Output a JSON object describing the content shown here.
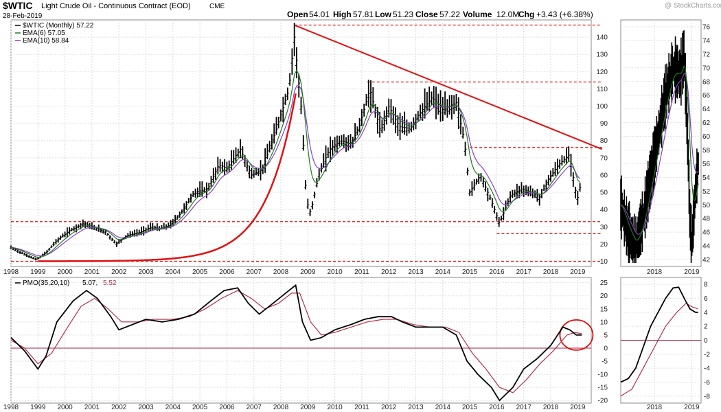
{
  "header": {
    "symbol": "$WTIC",
    "name": "Light Crude Oil - Continuous Contract (EOD)",
    "exchange": "CME",
    "date": "28-Feb-2019",
    "open_label": "Open",
    "open": "54.01",
    "high_label": "High",
    "high": "57.81",
    "low_label": "Low",
    "low": "51.23",
    "close_label": "Close",
    "close": "57.22",
    "volume_label": "Volume",
    "volume": "12.0M",
    "chg_label": "Chg",
    "chg": "+3.43 (+6.38%)",
    "watermark": "@ StockCharts.com"
  },
  "legend": {
    "price": "$WTIC (Monthly) 57.22",
    "ema6": "EMA(6) 57.05",
    "ema10": "EMA(10) 58.84",
    "pmo_label": "PMO(35,20,10)",
    "pmo_val": "5.07,",
    "pmo_sig": "5.52"
  },
  "colors": {
    "price": "#000000",
    "ema6": "#1f7a1f",
    "ema10": "#8a3ec8",
    "annotation": "#e01010",
    "pmo": "#000000",
    "pmo_signal": "#b0304a",
    "zero_line": "#a02040"
  },
  "chart_data": [
    {
      "type": "line",
      "panel": "price",
      "x_ticks": [
        "1998",
        "1999",
        "2000",
        "2001",
        "2002",
        "2003",
        "2004",
        "2005",
        "2006",
        "2007",
        "2008",
        "2009",
        "2010",
        "2011",
        "2012",
        "2013",
        "2014",
        "2015",
        "2016",
        "2017",
        "2018",
        "2019"
      ],
      "y_ticks": [
        10,
        20,
        30,
        40,
        50,
        60,
        70,
        80,
        90,
        100,
        110,
        120,
        130,
        140
      ],
      "ylim": [
        7,
        150
      ],
      "series": [
        {
          "name": "$WTIC (Monthly)",
          "points": [
            [
              1998.0,
              18
            ],
            [
              1998.5,
              14
            ],
            [
              1998.95,
              11
            ],
            [
              1999.3,
              15
            ],
            [
              1999.7,
              22
            ],
            [
              2000.2,
              28
            ],
            [
              2000.7,
              32
            ],
            [
              2001.0,
              30
            ],
            [
              2001.5,
              27
            ],
            [
              2001.9,
              20
            ],
            [
              2002.3,
              25
            ],
            [
              2002.8,
              27
            ],
            [
              2003.2,
              30
            ],
            [
              2003.5,
              29
            ],
            [
              2003.9,
              31
            ],
            [
              2004.3,
              38
            ],
            [
              2004.8,
              50
            ],
            [
              2005.3,
              52
            ],
            [
              2005.7,
              66
            ],
            [
              2006.0,
              64
            ],
            [
              2006.5,
              75
            ],
            [
              2006.9,
              60
            ],
            [
              2007.3,
              63
            ],
            [
              2007.8,
              85
            ],
            [
              2008.0,
              95
            ],
            [
              2008.3,
              110
            ],
            [
              2008.5,
              140
            ],
            [
              2008.75,
              100
            ],
            [
              2008.95,
              45
            ],
            [
              2009.1,
              38
            ],
            [
              2009.4,
              60
            ],
            [
              2009.8,
              75
            ],
            [
              2010.2,
              80
            ],
            [
              2010.6,
              78
            ],
            [
              2010.9,
              88
            ],
            [
              2011.3,
              110
            ],
            [
              2011.7,
              85
            ],
            [
              2012.0,
              100
            ],
            [
              2012.4,
              88
            ],
            [
              2012.8,
              87
            ],
            [
              2013.1,
              95
            ],
            [
              2013.6,
              105
            ],
            [
              2014.0,
              98
            ],
            [
              2014.5,
              102
            ],
            [
              2014.8,
              80
            ],
            [
              2015.0,
              50
            ],
            [
              2015.4,
              60
            ],
            [
              2015.8,
              45
            ],
            [
              2016.1,
              32
            ],
            [
              2016.5,
              48
            ],
            [
              2016.9,
              52
            ],
            [
              2017.3,
              50
            ],
            [
              2017.6,
              47
            ],
            [
              2017.9,
              57
            ],
            [
              2018.3,
              66
            ],
            [
              2018.7,
              72
            ],
            [
              2018.9,
              52
            ],
            [
              2019.0,
              47
            ],
            [
              2019.15,
              57
            ]
          ]
        },
        {
          "name": "EMA(6)",
          "value": "57.05"
        },
        {
          "name": "EMA(10)",
          "value": "58.84"
        }
      ],
      "annotations": {
        "horizontal_lines": [
          147,
          114,
          76,
          33,
          26,
          10
        ],
        "trendline": [
          [
            2008.5,
            147
          ],
          [
            2019.9,
            75
          ]
        ],
        "parabolic_curve": true
      }
    },
    {
      "type": "line",
      "panel": "pmo",
      "x_ticks": [
        "1998",
        "1999",
        "2000",
        "2001",
        "2002",
        "2003",
        "2004",
        "2005",
        "2006",
        "2007",
        "2008",
        "2009",
        "2010",
        "2011",
        "2012",
        "2013",
        "2014",
        "2015",
        "2016",
        "2017",
        "2018",
        "2019"
      ],
      "y_ticks": [
        -20,
        -15,
        -10,
        -5,
        0,
        5,
        10,
        15,
        20,
        25
      ],
      "ylim": [
        -21,
        27
      ],
      "series": [
        {
          "name": "PMO(35,20,10)",
          "points": [
            [
              1998.0,
              4
            ],
            [
              1998.5,
              -1
            ],
            [
              1999.0,
              -8
            ],
            [
              1999.3,
              -3
            ],
            [
              1999.7,
              10
            ],
            [
              2000.3,
              18
            ],
            [
              2000.8,
              22
            ],
            [
              2001.2,
              19
            ],
            [
              2001.7,
              12
            ],
            [
              2002.0,
              7
            ],
            [
              2002.5,
              9
            ],
            [
              2003.0,
              11
            ],
            [
              2003.6,
              10
            ],
            [
              2004.2,
              11
            ],
            [
              2004.8,
              13
            ],
            [
              2005.4,
              18
            ],
            [
              2005.9,
              22
            ],
            [
              2006.4,
              23
            ],
            [
              2006.8,
              17
            ],
            [
              2007.2,
              13
            ],
            [
              2007.7,
              17
            ],
            [
              2008.3,
              22
            ],
            [
              2008.55,
              24
            ],
            [
              2008.8,
              10
            ],
            [
              2009.1,
              3
            ],
            [
              2009.5,
              4
            ],
            [
              2010.0,
              7
            ],
            [
              2010.6,
              9
            ],
            [
              2011.1,
              11
            ],
            [
              2011.6,
              12
            ],
            [
              2012.1,
              12
            ],
            [
              2012.5,
              10
            ],
            [
              2013.0,
              8
            ],
            [
              2013.5,
              8
            ],
            [
              2014.0,
              8
            ],
            [
              2014.5,
              5
            ],
            [
              2014.9,
              -5
            ],
            [
              2015.3,
              -10
            ],
            [
              2015.8,
              -15
            ],
            [
              2016.1,
              -20
            ],
            [
              2016.6,
              -15
            ],
            [
              2017.0,
              -8
            ],
            [
              2017.5,
              -4
            ],
            [
              2018.0,
              1
            ],
            [
              2018.45,
              8
            ],
            [
              2018.7,
              7
            ],
            [
              2018.95,
              5
            ],
            [
              2019.15,
              5
            ]
          ]
        },
        {
          "name": "Signal",
          "points": [
            [
              1998.0,
              3
            ],
            [
              1998.5,
              0
            ],
            [
              1999.0,
              -6
            ],
            [
              1999.5,
              -2
            ],
            [
              2000.1,
              8
            ],
            [
              2000.6,
              16
            ],
            [
              2001.1,
              19
            ],
            [
              2001.6,
              15
            ],
            [
              2002.1,
              10
            ],
            [
              2002.7,
              10
            ],
            [
              2003.3,
              11
            ],
            [
              2004.0,
              11
            ],
            [
              2004.6,
              12
            ],
            [
              2005.2,
              15
            ],
            [
              2005.8,
              19
            ],
            [
              2006.4,
              22
            ],
            [
              2006.9,
              19
            ],
            [
              2007.4,
              15
            ],
            [
              2007.9,
              17
            ],
            [
              2008.4,
              21
            ],
            [
              2008.7,
              21
            ],
            [
              2009.1,
              10
            ],
            [
              2009.5,
              5
            ],
            [
              2010.0,
              6
            ],
            [
              2010.6,
              8
            ],
            [
              2011.2,
              10
            ],
            [
              2011.8,
              11
            ],
            [
              2012.3,
              11
            ],
            [
              2012.9,
              9
            ],
            [
              2013.5,
              8
            ],
            [
              2014.1,
              8
            ],
            [
              2014.6,
              6
            ],
            [
              2015.1,
              -2
            ],
            [
              2015.6,
              -8
            ],
            [
              2016.1,
              -15
            ],
            [
              2016.6,
              -17
            ],
            [
              2017.1,
              -12
            ],
            [
              2017.6,
              -6
            ],
            [
              2018.1,
              -1
            ],
            [
              2018.6,
              5
            ],
            [
              2018.9,
              6
            ],
            [
              2019.15,
              5.5
            ]
          ]
        }
      ],
      "annotations": {
        "zero_line": 0,
        "circle_around": [
          2018.9,
          5
        ]
      }
    },
    {
      "type": "line",
      "panel": "price-zoom",
      "x_ticks": [
        "2018",
        "2019"
      ],
      "y_ticks": [
        42,
        44,
        46,
        48,
        50,
        52,
        54,
        56,
        58,
        60,
        62,
        64,
        66,
        68,
        70,
        72,
        74,
        76
      ],
      "ylim": [
        41,
        77
      ]
    },
    {
      "type": "line",
      "panel": "pmo-zoom",
      "x_ticks": [
        "2018",
        "2019"
      ],
      "y_ticks": [
        -8,
        -6,
        -4,
        -2,
        0,
        2,
        4,
        6,
        8
      ],
      "ylim": [
        -9,
        9
      ]
    }
  ]
}
